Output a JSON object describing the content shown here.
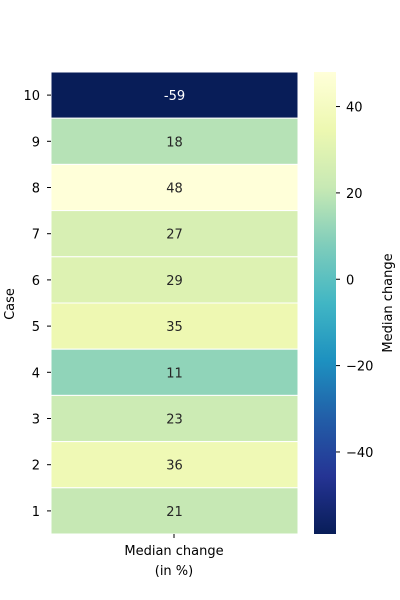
{
  "chart_data": {
    "type": "heatmap",
    "xlabel": "Case",
    "column_label_lines": [
      "Median change",
      "(in %)"
    ],
    "rows": [
      "10",
      "9",
      "8",
      "7",
      "6",
      "5",
      "4",
      "3",
      "2",
      "1"
    ],
    "values": [
      -59,
      18,
      48,
      27,
      29,
      35,
      11,
      23,
      36,
      21
    ],
    "colorbar": {
      "label": "Median change",
      "range": [
        -59,
        48
      ],
      "ticks": [
        40,
        20,
        0,
        -20,
        -40
      ],
      "tick_labels": [
        "40",
        "20",
        "0",
        "−20",
        "−40"
      ],
      "colormap": "YlGnBu",
      "colormap_stops": [
        "#ffffd9",
        "#edf8b1",
        "#c7e9b4",
        "#7fcdbb",
        "#41b6c4",
        "#1d91c0",
        "#225ea8",
        "#253494",
        "#081d58"
      ]
    },
    "grid": false,
    "legend": "none"
  }
}
